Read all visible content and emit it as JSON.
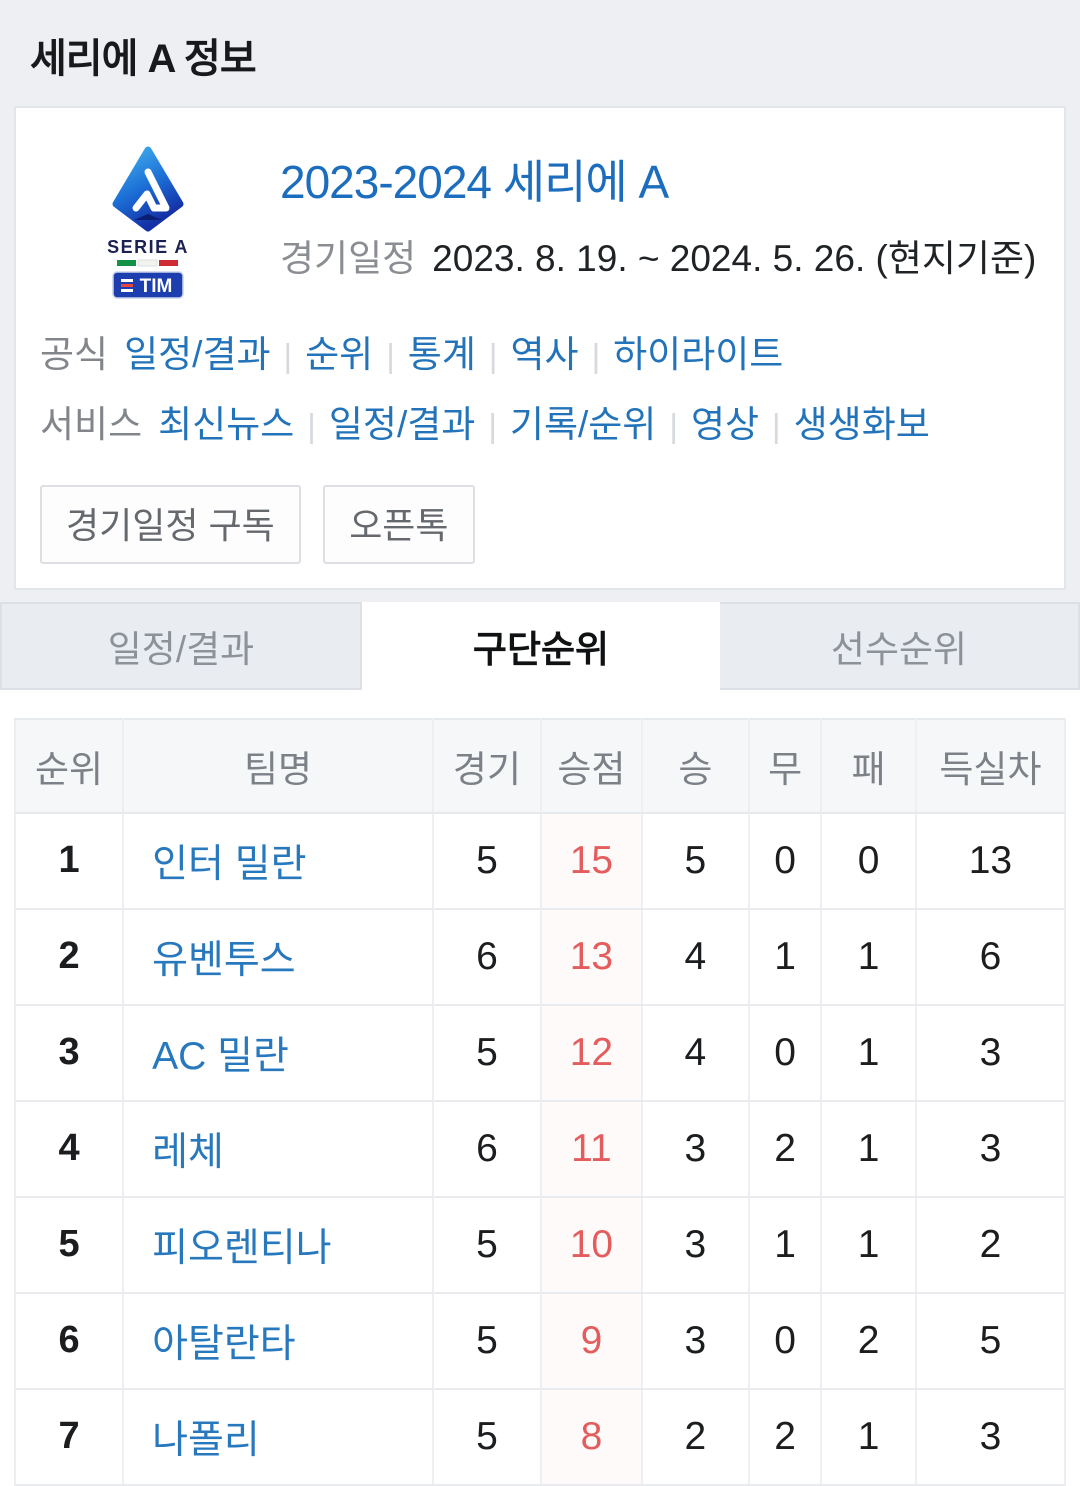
{
  "page": {
    "title": "세리에 A 정보"
  },
  "card": {
    "league_title": "2023-2024 세리에 A",
    "schedule_label": "경기일정",
    "schedule_value": "2023. 8. 19. ~ 2024. 5. 26. (현지기준)",
    "official_label": "공식",
    "official_links": [
      "일정/결과",
      "순위",
      "통계",
      "역사",
      "하이라이트"
    ],
    "service_label": "서비스",
    "service_links": [
      "최신뉴스",
      "일정/결과",
      "기록/순위",
      "영상",
      "생생화보"
    ],
    "buttons": [
      "경기일정 구독",
      "오픈톡"
    ],
    "logo": {
      "serie_a": "SERIE A",
      "tim": "TIM"
    }
  },
  "tabs": [
    {
      "id": "schedule-results",
      "label": "일정/결과",
      "active": false
    },
    {
      "id": "club-rankings",
      "label": "구단순위",
      "active": true
    },
    {
      "id": "player-rankings",
      "label": "선수순위",
      "active": false
    }
  ],
  "standings": {
    "headers": [
      "순위",
      "팀명",
      "경기",
      "승점",
      "승",
      "무",
      "패",
      "득실차"
    ],
    "rows": [
      {
        "rank": "1",
        "team": "인터 밀란",
        "played": "5",
        "points": "15",
        "win": "5",
        "draw": "0",
        "loss": "0",
        "gd": "13"
      },
      {
        "rank": "2",
        "team": "유벤투스",
        "played": "6",
        "points": "13",
        "win": "4",
        "draw": "1",
        "loss": "1",
        "gd": "6"
      },
      {
        "rank": "3",
        "team": "AC 밀란",
        "played": "5",
        "points": "12",
        "win": "4",
        "draw": "0",
        "loss": "1",
        "gd": "3"
      },
      {
        "rank": "4",
        "team": "레체",
        "played": "6",
        "points": "11",
        "win": "3",
        "draw": "2",
        "loss": "1",
        "gd": "3"
      },
      {
        "rank": "5",
        "team": "피오렌티나",
        "played": "5",
        "points": "10",
        "win": "3",
        "draw": "1",
        "loss": "1",
        "gd": "2"
      },
      {
        "rank": "6",
        "team": "아탈란타",
        "played": "5",
        "points": "9",
        "win": "3",
        "draw": "0",
        "loss": "2",
        "gd": "5"
      },
      {
        "rank": "7",
        "team": "나폴리",
        "played": "5",
        "points": "8",
        "win": "2",
        "draw": "2",
        "loss": "1",
        "gd": "3"
      }
    ]
  },
  "colors": {
    "link_blue": "#2273ba",
    "team_blue": "#2878be",
    "title_blue": "#1c6dbd",
    "points_red": "#e45c5c",
    "flag_green": "#119247",
    "flag_red": "#cf2b37",
    "tim_navy": "#1d3eae"
  }
}
